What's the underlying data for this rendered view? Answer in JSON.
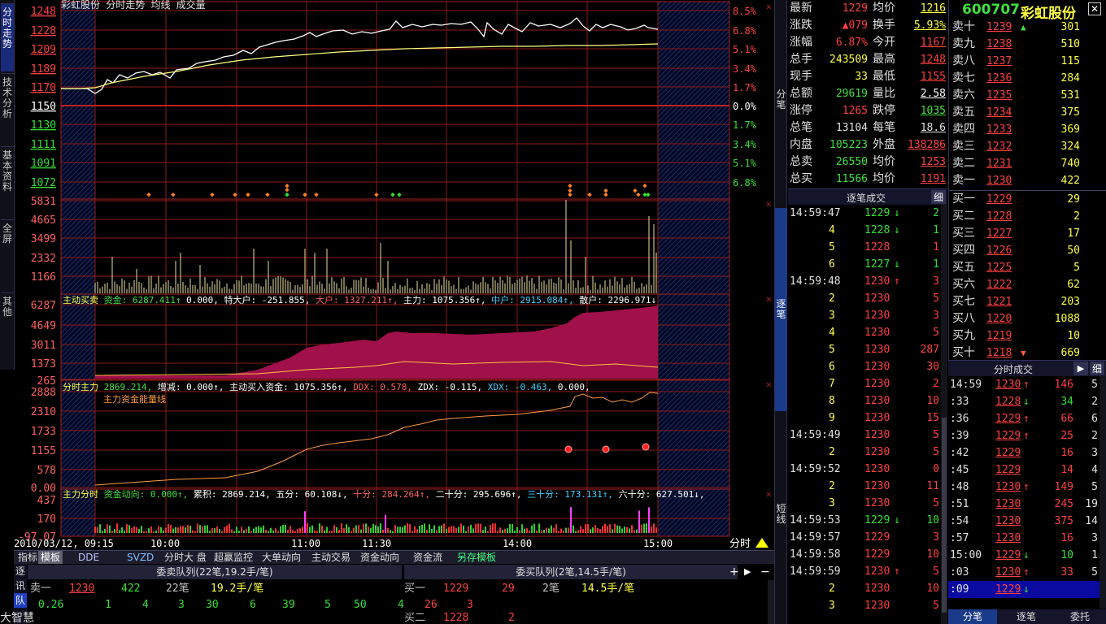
{
  "left_tabs": [
    "分时走势",
    "技术分析",
    "基本资料",
    "全屏",
    "其他"
  ],
  "chart": {
    "title": "彩虹股份 分时走势 均线 成交量",
    "price_ticks": [
      "1248",
      "1228",
      "1209",
      "1189",
      "1170",
      "1150",
      "1130",
      "1111",
      "1091",
      "1072"
    ],
    "pct_ticks": [
      "8.5%",
      "6.8%",
      "5.1%",
      "3.4%",
      "1.7%",
      "0.0%",
      "1.7%",
      "3.4%",
      "5.1%",
      "6.8%"
    ],
    "volume_ticks": [
      "5831",
      "4665",
      "3499",
      "2332",
      "1166"
    ],
    "active_buy_ticks": [
      "6287",
      "4649",
      "3011",
      "1373",
      "265"
    ],
    "main_force_ticks": [
      "2888",
      "2310",
      "1733",
      "1155",
      "578",
      "0.00"
    ],
    "fund_ticks": [
      "437",
      "170",
      "-97.07"
    ],
    "time_labels": [
      "2010/03/12, 09:15",
      "10:00",
      "11:00",
      "11:30",
      "14:00",
      "15:00"
    ],
    "time_share_label": "分时",
    "active_buy_header": {
      "name": "主动买卖",
      "items": [
        "资金: 6287.411↑",
        "0.000,",
        "特大户: -251.855,",
        "大户: 1327.211↑,",
        "主力: 1075.356↑,",
        "中户: 2915.084↑,",
        "散户: 2296.971↓"
      ]
    },
    "main_force_header": {
      "name": "分时主力",
      "items": [
        "2869.214,",
        "增减: 0.000↑,",
        "主动买入资金: 1075.356↑,",
        "DDX: 0.578,",
        "ZDX: -0.115,",
        "XDX: -0.463,",
        "0.000,"
      ],
      "sub": "主力资金能量线"
    },
    "fund_header": {
      "name": "主力分时",
      "items": [
        "资金动向: 0.000↑,",
        "累积: 2869.214,",
        "五分: 60.108↓,",
        "十分: 284.264↑,",
        "二十分: 295.696↑,",
        "三十分: 173.131↑,",
        "六十分: 627.501↓,"
      ]
    }
  },
  "bottom_tabs": [
    "指标",
    "模板",
    "DDE",
    "SVZD",
    "分时大 盘",
    "超赢监控",
    "大单动向",
    "主动交易",
    "资金动向",
    "资金流",
    "另存模板"
  ],
  "queues": {
    "side_labels": [
      "逐",
      "讯",
      "队"
    ],
    "sell_title": "委卖队列(22笔,19.2手/笔)",
    "buy_title": "委买队列(2笔,14.5手/笔)",
    "sell_row": {
      "label": "卖一",
      "price": "1230",
      "vol": "422",
      "count": "22笔",
      "avg": "19.2手/笔"
    },
    "sell_details": [
      "0.26",
      "1",
      "4",
      "3",
      "30",
      "6",
      "39",
      "5",
      "50",
      "4"
    ],
    "buy_row": {
      "label": "买一",
      "price": "1229",
      "vol": "29",
      "count": "2笔",
      "avg": "14.5手/笔"
    },
    "buy_details": [
      "26",
      "3"
    ],
    "buy_row2": {
      "label": "买二",
      "price": "1228",
      "vol": "2"
    },
    "footer": "大智慧"
  },
  "middle_tabs": [
    "分笔",
    "逐笔",
    "短线"
  ],
  "quote": [
    [
      "最新",
      "1229",
      "均价",
      "1216"
    ],
    [
      "涨跌",
      "▲079",
      "换手",
      "5.93%"
    ],
    [
      "涨幅",
      "6.87%",
      "今开",
      "1167"
    ],
    [
      "总手",
      "243509",
      "最高",
      "1248"
    ],
    [
      "现手",
      "33",
      "最低",
      "1155"
    ],
    [
      "总额",
      "29619",
      "量比",
      "2.58"
    ],
    [
      "涨停",
      "1265",
      "跌停",
      "1035"
    ],
    [
      "总笔",
      "13104",
      "每笔",
      "18.6"
    ],
    [
      "内盘",
      "105223",
      "外盘",
      "138286"
    ],
    [
      "总卖",
      "26550",
      "均价",
      "1253"
    ],
    [
      "总买",
      "11566",
      "均价",
      "1191"
    ]
  ],
  "stock": {
    "code": "600707",
    "name": "彩虹股份"
  },
  "order_book": {
    "sells": [
      [
        "卖十",
        "1239",
        "301"
      ],
      [
        "卖九",
        "1238",
        "510"
      ],
      [
        "卖八",
        "1237",
        "115"
      ],
      [
        "卖七",
        "1236",
        "284"
      ],
      [
        "卖六",
        "1235",
        "531"
      ],
      [
        "卖五",
        "1234",
        "375"
      ],
      [
        "卖四",
        "1233",
        "369"
      ],
      [
        "卖三",
        "1232",
        "324"
      ],
      [
        "卖二",
        "1231",
        "740"
      ],
      [
        "卖一",
        "1230",
        "422"
      ]
    ],
    "buys": [
      [
        "买一",
        "1229",
        "29"
      ],
      [
        "买二",
        "1228",
        "2"
      ],
      [
        "买三",
        "1227",
        "17"
      ],
      [
        "买四",
        "1226",
        "50"
      ],
      [
        "买五",
        "1225",
        "5"
      ],
      [
        "买六",
        "1222",
        "62"
      ],
      [
        "买七",
        "1221",
        "203"
      ],
      [
        "买八",
        "1220",
        "1088"
      ],
      [
        "买九",
        "1219",
        "10"
      ],
      [
        "买十",
        "1218",
        "669"
      ]
    ]
  },
  "tick_trades": {
    "title": "逐笔成交",
    "detail_btn": "细",
    "rows": [
      [
        "14:59:47",
        "1229",
        "↓",
        "2"
      ],
      [
        "4",
        "1228",
        "↓",
        "1"
      ],
      [
        "5",
        "1228",
        "",
        "1"
      ],
      [
        "6",
        "1227",
        "↓",
        "1"
      ],
      [
        "14:59:48",
        "1230",
        "↑",
        "3"
      ],
      [
        "2",
        "1230",
        "",
        "5"
      ],
      [
        "3",
        "1230",
        "",
        "3"
      ],
      [
        "4",
        "1230",
        "",
        "5"
      ],
      [
        "5",
        "1230",
        "",
        "287"
      ],
      [
        "6",
        "1230",
        "",
        "30"
      ],
      [
        "7",
        "1230",
        "",
        "2"
      ],
      [
        "8",
        "1230",
        "",
        "10"
      ],
      [
        "9",
        "1230",
        "",
        "15"
      ],
      [
        "14:59:49",
        "1230",
        "",
        "5"
      ],
      [
        "2",
        "1230",
        "",
        "5"
      ],
      [
        "14:59:52",
        "1230",
        "",
        "0"
      ],
      [
        "2",
        "1230",
        "",
        "11"
      ],
      [
        "3",
        "1230",
        "",
        "5"
      ],
      [
        "14:59:53",
        "1229",
        "↓",
        "10"
      ],
      [
        "14:59:57",
        "1229",
        "",
        "3"
      ],
      [
        "14:59:58",
        "1229",
        "",
        "10"
      ],
      [
        "14:59:59",
        "1230",
        "↑",
        "5"
      ],
      [
        "2",
        "1230",
        "",
        "10"
      ],
      [
        "3",
        "1230",
        "",
        "5"
      ]
    ]
  },
  "time_trades": {
    "title": "分时成交",
    "detail_btn": "细",
    "rows": [
      [
        "14:59",
        "1230",
        "↑",
        "146",
        "5"
      ],
      [
        ":33",
        "1228",
        "↓",
        "34",
        "2"
      ],
      [
        ":36",
        "1229",
        "↑",
        "66",
        "6"
      ],
      [
        ":39",
        "1229",
        "↑",
        "25",
        "2"
      ],
      [
        ":42",
        "1229",
        "",
        "16",
        "3"
      ],
      [
        ":45",
        "1229",
        "",
        "14",
        "4"
      ],
      [
        ":48",
        "1230",
        "↑",
        "149",
        "5"
      ],
      [
        ":51",
        "1230",
        "",
        "245",
        "19"
      ],
      [
        ":54",
        "1230",
        "",
        "375",
        "14"
      ],
      [
        ":57",
        "1230",
        "",
        "16",
        "3"
      ],
      [
        "15:00",
        "1229",
        "↓",
        "10",
        "1"
      ],
      [
        ":03",
        "1230",
        "↑",
        "33",
        "5"
      ],
      [
        ":09",
        "1229",
        "↓",
        "",
        ""
      ]
    ]
  },
  "right_bottom_tabs": [
    "分笔",
    "逐笔",
    "委托"
  ],
  "colors": {
    "up": "#ff4040",
    "down": "#33e033",
    "grid": "#8b1a1a",
    "price_line": "#ffffff",
    "avg_line": "#ffff80",
    "fill": "#a0104a"
  }
}
